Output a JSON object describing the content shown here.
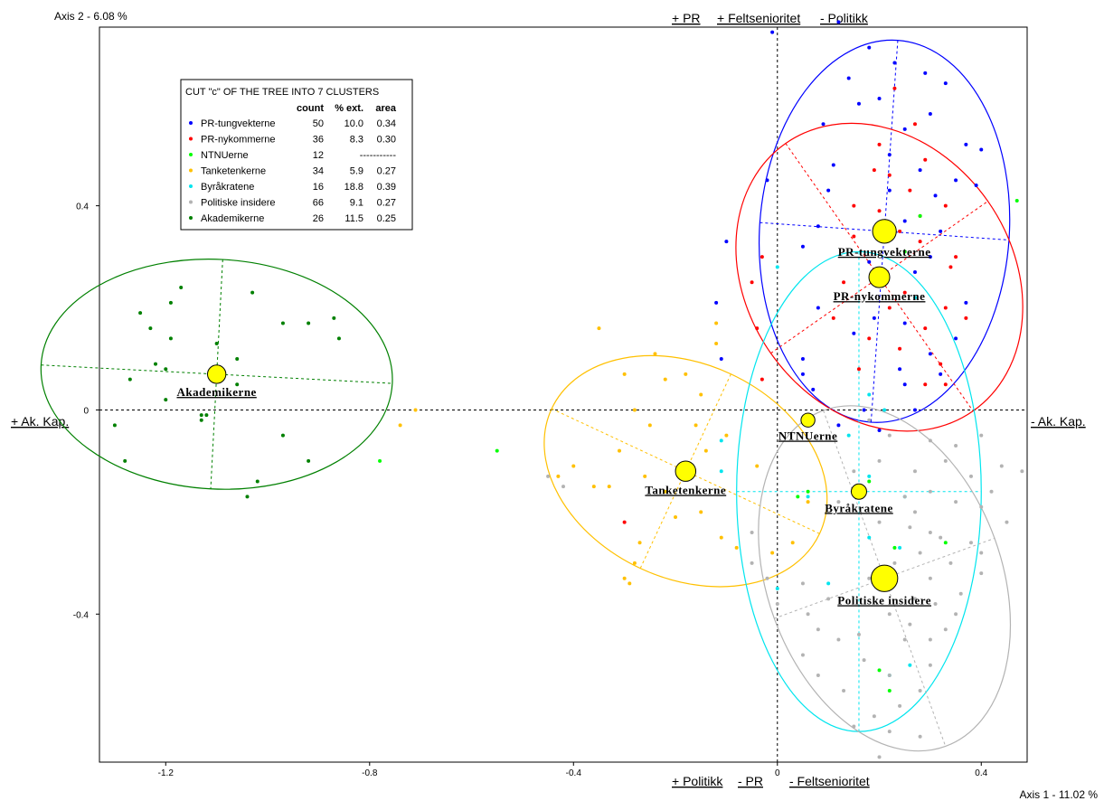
{
  "chart_data": {
    "type": "scatter",
    "axis1_label": "Axis 1  -  11.02 %",
    "axis2_label": "Axis 2  -  6.08 %",
    "xlim": [
      -1.33,
      0.49
    ],
    "ylim": [
      -0.69,
      0.75
    ],
    "x_ticks": [
      -1.2,
      -0.8,
      -0.4,
      0,
      0.4
    ],
    "x_tick_labels": [
      "-1.2",
      "-0.8",
      "-0.4",
      "0",
      "0.4"
    ],
    "y_ticks": [
      0.4,
      0,
      -0.4
    ],
    "y_tick_labels": [
      "0.4",
      "0",
      "-0.4"
    ],
    "poles": {
      "left": "+ Ak. Kap.",
      "right": "- Ak. Kap.",
      "top": [
        "+ PR",
        "+ Feltsenioritet",
        "- Politikk"
      ],
      "bottom": [
        "+ Politikk",
        "- PR",
        "- Feltsenioritet"
      ]
    },
    "legend": {
      "title": "CUT \"c\" OF THE TREE INTO   7 CLUSTERS",
      "headers": [
        "count",
        "% ext.",
        "area"
      ],
      "placement": "top-left"
    },
    "clusters": [
      {
        "name": "PR-tungvekterne",
        "label": "PR-tungvekterne",
        "color": "#0000ff",
        "count": "50",
        "ext": "10.0",
        "area": "0.34",
        "center": [
          0.21,
          0.35
        ],
        "weight": 50,
        "ellipse": {
          "rx": 0.245,
          "ry": 0.375,
          "angle": -4
        },
        "points": [
          [
            -0.01,
            0.74
          ],
          [
            0.12,
            0.76
          ],
          [
            0.14,
            0.65
          ],
          [
            0.18,
            0.71
          ],
          [
            0.23,
            0.68
          ],
          [
            0.29,
            0.66
          ],
          [
            0.33,
            0.64
          ],
          [
            0.2,
            0.61
          ],
          [
            0.25,
            0.55
          ],
          [
            0.16,
            0.6
          ],
          [
            0.3,
            0.58
          ],
          [
            0.37,
            0.52
          ],
          [
            0.09,
            0.56
          ],
          [
            0.22,
            0.5
          ],
          [
            0.28,
            0.47
          ],
          [
            0.35,
            0.45
          ],
          [
            0.4,
            0.51
          ],
          [
            0.31,
            0.42
          ],
          [
            0.39,
            0.44
          ],
          [
            0.22,
            0.43
          ],
          [
            -0.02,
            0.45
          ],
          [
            0.1,
            0.43
          ],
          [
            0.08,
            0.36
          ],
          [
            0.25,
            0.37
          ],
          [
            0.32,
            0.35
          ],
          [
            0.3,
            0.3
          ],
          [
            0.05,
            0.32
          ],
          [
            -0.1,
            0.33
          ],
          [
            0.18,
            0.29
          ],
          [
            0.27,
            0.27
          ],
          [
            -0.12,
            0.21
          ],
          [
            0.08,
            0.2
          ],
          [
            0.19,
            0.18
          ],
          [
            0.25,
            0.17
          ],
          [
            0.3,
            0.11
          ],
          [
            0.35,
            0.14
          ],
          [
            0.05,
            0.1
          ],
          [
            0.15,
            0.15
          ],
          [
            0.24,
            0.08
          ],
          [
            0.32,
            0.07
          ],
          [
            -0.11,
            0.1
          ],
          [
            0.07,
            0.04
          ],
          [
            0.17,
            0.0
          ],
          [
            0.25,
            0.05
          ],
          [
            0.2,
            -0.04
          ],
          [
            0.12,
            -0.03
          ],
          [
            0.27,
            0.0
          ],
          [
            0.37,
            0.21
          ],
          [
            0.11,
            0.48
          ],
          [
            0.05,
            0.07
          ]
        ]
      },
      {
        "name": "PR-nykommerne",
        "label": "PR-nykommerne",
        "color": "#ff0000",
        "count": "36",
        "ext": "8.3",
        "area": "0.30",
        "center": [
          0.2,
          0.26
        ],
        "weight": 36,
        "ellipse": {
          "rx": 0.26,
          "ry": 0.32,
          "angle": 35
        },
        "points": [
          [
            0.23,
            0.63
          ],
          [
            0.27,
            0.56
          ],
          [
            0.2,
            0.52
          ],
          [
            0.22,
            0.46
          ],
          [
            0.29,
            0.49
          ],
          [
            0.26,
            0.43
          ],
          [
            0.2,
            0.39
          ],
          [
            0.33,
            0.4
          ],
          [
            0.24,
            0.35
          ],
          [
            0.15,
            0.34
          ],
          [
            0.28,
            0.33
          ],
          [
            0.35,
            0.3
          ],
          [
            0.19,
            0.25
          ],
          [
            0.27,
            0.22
          ],
          [
            0.33,
            0.2
          ],
          [
            0.22,
            0.2
          ],
          [
            0.29,
            0.16
          ],
          [
            0.37,
            0.18
          ],
          [
            0.24,
            0.12
          ],
          [
            0.32,
            0.09
          ],
          [
            0.18,
            0.14
          ],
          [
            -0.03,
            0.3
          ],
          [
            -0.05,
            0.25
          ],
          [
            -0.04,
            0.16
          ],
          [
            0.11,
            0.18
          ],
          [
            0.16,
            0.08
          ],
          [
            0.29,
            0.05
          ],
          [
            0.33,
            0.05
          ],
          [
            0.34,
            0.28
          ],
          [
            -0.03,
            0.06
          ],
          [
            -0.3,
            -0.22
          ],
          [
            0.13,
            0.25
          ],
          [
            0.25,
            0.23
          ],
          [
            0.28,
            0.38
          ],
          [
            0.19,
            0.47
          ],
          [
            0.15,
            0.4
          ]
        ]
      },
      {
        "name": "NTNUerne",
        "label": "NTNUerne",
        "color": "#00ff00",
        "count": "12",
        "ext": "",
        "area": "-----------",
        "center": [
          0.06,
          -0.02
        ],
        "weight": 12,
        "ellipse": null,
        "points": [
          [
            0.28,
            0.38
          ],
          [
            0.47,
            0.41
          ],
          [
            0.25,
            0.31
          ],
          [
            0.06,
            -0.16
          ],
          [
            0.18,
            -0.14
          ],
          [
            0.23,
            -0.27
          ],
          [
            0.33,
            -0.26
          ],
          [
            0.2,
            -0.51
          ],
          [
            0.22,
            -0.55
          ],
          [
            -0.55,
            -0.08
          ],
          [
            -0.78,
            -0.1
          ],
          [
            0.04,
            -0.17
          ]
        ]
      },
      {
        "name": "Tanketenkerne",
        "label": "Tanketenkerne",
        "color": "#ffc000",
        "count": "34",
        "ext": "5.9",
        "area": "0.27",
        "center": [
          -0.18,
          -0.12
        ],
        "weight": 34,
        "ellipse": {
          "rx": 0.29,
          "ry": 0.21,
          "angle": -25
        },
        "points": [
          [
            -0.35,
            0.16
          ],
          [
            -0.3,
            0.07
          ],
          [
            -0.28,
            0.0
          ],
          [
            -0.22,
            0.06
          ],
          [
            -0.18,
            0.07
          ],
          [
            -0.12,
            0.13
          ],
          [
            -0.15,
            0.03
          ],
          [
            -0.25,
            -0.03
          ],
          [
            -0.16,
            -0.03
          ],
          [
            -0.14,
            -0.08
          ],
          [
            -0.1,
            -0.05
          ],
          [
            -0.04,
            -0.11
          ],
          [
            -0.31,
            -0.08
          ],
          [
            -0.33,
            -0.15
          ],
          [
            -0.4,
            -0.11
          ],
          [
            -0.43,
            -0.13
          ],
          [
            -0.36,
            -0.15
          ],
          [
            -0.26,
            -0.13
          ],
          [
            -0.22,
            -0.16
          ],
          [
            -0.2,
            -0.21
          ],
          [
            -0.15,
            -0.2
          ],
          [
            -0.11,
            -0.25
          ],
          [
            -0.27,
            -0.26
          ],
          [
            -0.28,
            -0.3
          ],
          [
            -0.3,
            -0.33
          ],
          [
            -0.08,
            -0.27
          ],
          [
            -0.01,
            -0.28
          ],
          [
            0.03,
            -0.26
          ],
          [
            0.06,
            -0.18
          ],
          [
            -0.71,
            0.0
          ],
          [
            -0.74,
            -0.03
          ],
          [
            -0.29,
            -0.34
          ],
          [
            -0.12,
            0.17
          ],
          [
            -0.24,
            0.11
          ]
        ]
      },
      {
        "name": "Byråkratene",
        "label": "Byråkratene",
        "color": "#00e5ee",
        "count": "16",
        "ext": "18.8",
        "area": "0.39",
        "center": [
          0.16,
          -0.16
        ],
        "weight": 16,
        "ellipse": {
          "rx": 0.24,
          "ry": 0.47,
          "angle": 0
        },
        "points": [
          [
            0.0,
            0.28
          ],
          [
            -0.11,
            -0.06
          ],
          [
            -0.11,
            -0.12
          ],
          [
            0.14,
            -0.05
          ],
          [
            0.06,
            -0.17
          ],
          [
            0.18,
            -0.13
          ],
          [
            0.25,
            -0.17
          ],
          [
            0.24,
            -0.27
          ],
          [
            0.18,
            -0.25
          ],
          [
            0.1,
            -0.34
          ],
          [
            0.0,
            -0.35
          ],
          [
            0.22,
            -0.52
          ],
          [
            0.26,
            -0.5
          ],
          [
            0.21,
            0.0
          ],
          [
            0.27,
            0.22
          ],
          [
            0.18,
            0.03
          ]
        ]
      },
      {
        "name": "Politiske insidere",
        "label": "Politiske insidere",
        "color": "#b3b3b3",
        "count": "66",
        "ext": "9.1",
        "area": "0.27",
        "center": [
          0.21,
          -0.33
        ],
        "weight": 66,
        "ellipse": {
          "rx": 0.23,
          "ry": 0.35,
          "angle": 20
        },
        "points": [
          [
            0.18,
            -0.02
          ],
          [
            0.22,
            -0.05
          ],
          [
            0.3,
            -0.06
          ],
          [
            0.35,
            -0.07
          ],
          [
            0.4,
            -0.05
          ],
          [
            0.2,
            -0.1
          ],
          [
            0.27,
            -0.12
          ],
          [
            0.33,
            -0.1
          ],
          [
            0.38,
            -0.13
          ],
          [
            0.44,
            -0.11
          ],
          [
            0.48,
            -0.12
          ],
          [
            0.25,
            -0.17
          ],
          [
            0.3,
            -0.16
          ],
          [
            0.35,
            -0.18
          ],
          [
            0.4,
            -0.19
          ],
          [
            0.42,
            -0.16
          ],
          [
            0.2,
            -0.22
          ],
          [
            0.26,
            -0.23
          ],
          [
            0.32,
            -0.25
          ],
          [
            0.38,
            -0.26
          ],
          [
            0.28,
            -0.28
          ],
          [
            0.34,
            -0.3
          ],
          [
            0.4,
            -0.28
          ],
          [
            0.23,
            -0.3
          ],
          [
            0.3,
            -0.33
          ],
          [
            0.36,
            -0.36
          ],
          [
            0.27,
            -0.37
          ],
          [
            0.31,
            -0.38
          ],
          [
            0.22,
            -0.4
          ],
          [
            0.26,
            -0.42
          ],
          [
            0.3,
            -0.45
          ],
          [
            0.16,
            -0.44
          ],
          [
            0.12,
            -0.45
          ],
          [
            0.08,
            -0.43
          ],
          [
            0.06,
            -0.4
          ],
          [
            0.17,
            -0.49
          ],
          [
            0.22,
            -0.52
          ],
          [
            0.28,
            -0.55
          ],
          [
            0.3,
            -0.5
          ],
          [
            0.24,
            -0.58
          ],
          [
            0.19,
            -0.6
          ],
          [
            0.13,
            -0.55
          ],
          [
            0.08,
            -0.52
          ],
          [
            0.05,
            -0.48
          ],
          [
            0.28,
            -0.64
          ],
          [
            -0.05,
            -0.24
          ],
          [
            -0.05,
            -0.3
          ],
          [
            -0.02,
            -0.33
          ],
          [
            0.0,
            -0.38
          ],
          [
            0.05,
            -0.34
          ],
          [
            0.1,
            -0.37
          ],
          [
            0.18,
            -0.33
          ],
          [
            0.25,
            -0.45
          ],
          [
            0.33,
            -0.43
          ],
          [
            0.4,
            -0.32
          ],
          [
            0.45,
            -0.22
          ],
          [
            -0.45,
            -0.13
          ],
          [
            -0.42,
            -0.15
          ],
          [
            0.12,
            -0.18
          ],
          [
            0.15,
            -0.12
          ],
          [
            0.3,
            -0.24
          ],
          [
            0.35,
            -0.4
          ],
          [
            0.22,
            -0.63
          ],
          [
            0.2,
            -0.68
          ],
          [
            0.15,
            -0.62
          ],
          [
            0.27,
            -0.2
          ]
        ]
      },
      {
        "name": "Akademikerne",
        "label": "Akademikerne",
        "color": "#008000",
        "count": "26",
        "ext": "11.5",
        "area": "0.25",
        "center": [
          -1.1,
          0.07
        ],
        "weight": 26,
        "ellipse": {
          "rx": 0.345,
          "ry": 0.225,
          "angle": -3
        },
        "points": [
          [
            -1.27,
            0.06
          ],
          [
            -1.25,
            0.19
          ],
          [
            -1.19,
            0.21
          ],
          [
            -1.17,
            0.24
          ],
          [
            -1.23,
            0.16
          ],
          [
            -1.22,
            0.09
          ],
          [
            -1.2,
            0.08
          ],
          [
            -1.19,
            0.14
          ],
          [
            -1.1,
            0.13
          ],
          [
            -1.06,
            0.1
          ],
          [
            -1.03,
            0.23
          ],
          [
            -0.97,
            0.17
          ],
          [
            -0.92,
            0.17
          ],
          [
            -0.87,
            0.18
          ],
          [
            -0.86,
            0.14
          ],
          [
            -1.06,
            0.05
          ],
          [
            -1.13,
            -0.02
          ],
          [
            -1.12,
            -0.01
          ],
          [
            -1.13,
            -0.01
          ],
          [
            -1.2,
            0.02
          ],
          [
            -1.3,
            -0.03
          ],
          [
            -1.28,
            -0.1
          ],
          [
            -0.97,
            -0.05
          ],
          [
            -0.92,
            -0.1
          ],
          [
            -1.02,
            -0.14
          ],
          [
            -1.04,
            -0.17
          ]
        ]
      }
    ]
  }
}
